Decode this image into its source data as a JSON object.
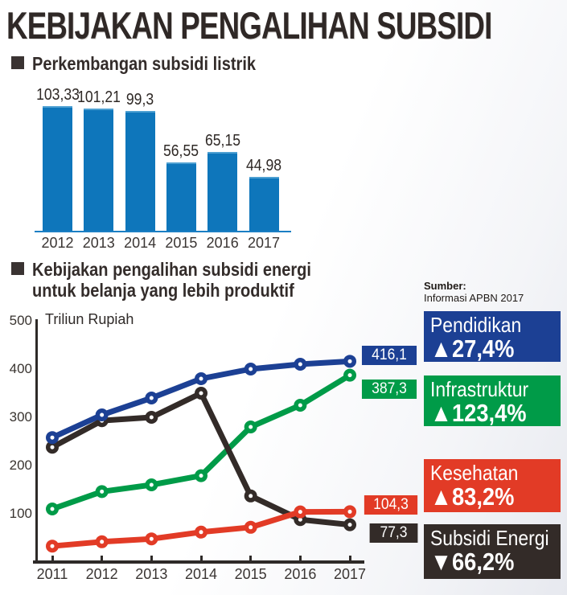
{
  "page": {
    "title": "KEBIJAKAN PENGALIHAN SUBSIDI"
  },
  "sections": {
    "bar_chart_title": "Perkembangan subsidi listrik",
    "line_chart_title_line1": "Kebijakan pengalihan subsidi energi",
    "line_chart_title_line2": "untuk belanja yang lebih produktif"
  },
  "source": {
    "label": "Sumber:",
    "text": "Informasi APBN 2017"
  },
  "colors": {
    "bar_blue": "#0e76bb",
    "bar_baseline_blue": "#1b7fc4",
    "pendidikan_blue": "#1c4094",
    "infrastruktur_green": "#009b48",
    "kesehatan_red": "#e23b26",
    "subsidi_energi_black": "#332b28",
    "axis_dark": "#2e2a28",
    "heading_dark": "#332c2a"
  },
  "chart_data": [
    {
      "type": "bar",
      "title": "Perkembangan subsidi listrik",
      "categories": [
        "2012",
        "2013",
        "2014",
        "2015",
        "2016",
        "2017"
      ],
      "values": [
        103.33,
        101.21,
        99.3,
        56.55,
        65.15,
        44.98
      ],
      "value_labels": [
        "103,33",
        "101,21",
        "99,3",
        "56,55",
        "65,15",
        "44,98"
      ],
      "bar_color": "#0e76bb",
      "ylim": [
        0,
        110
      ],
      "grid": false
    },
    {
      "type": "line",
      "title": "Kebijakan pengalihan subsidi energi untuk belanja yang lebih produktif",
      "ylabel": "Triliun Rupiah",
      "ylim": [
        0,
        500
      ],
      "yticks": [
        100,
        200,
        300,
        400,
        500
      ],
      "x": [
        "2011",
        "2012",
        "2013",
        "2014",
        "2015",
        "2016",
        "2017"
      ],
      "grid": false,
      "legend_position": "right",
      "series": [
        {
          "name": "Pendidikan",
          "color": "#1c4094",
          "values": [
            258,
            305,
            340,
            380,
            400,
            410,
            416.1
          ],
          "end_label": "416,1",
          "change_arrow": "▲",
          "change_value": "27,4%"
        },
        {
          "name": "Infrastruktur",
          "color": "#009b48",
          "values": [
            110,
            146,
            160,
            179,
            280,
            325,
            387.3
          ],
          "end_label": "387,3",
          "change_arrow": "▲",
          "change_value": "123,4%"
        },
        {
          "name": "Kesehatan",
          "color": "#e23b26",
          "values": [
            33,
            42,
            48,
            62,
            72,
            104,
            104.3
          ],
          "end_label": "104,3",
          "change_arrow": "▲",
          "change_value": "83,2%"
        },
        {
          "name": "Subsidi Energi",
          "color": "#332b28",
          "values": [
            238,
            293,
            300,
            350,
            137,
            88,
            77.3
          ],
          "end_label": "77,3",
          "change_arrow": "▼",
          "change_value": "66,2%"
        }
      ]
    }
  ]
}
